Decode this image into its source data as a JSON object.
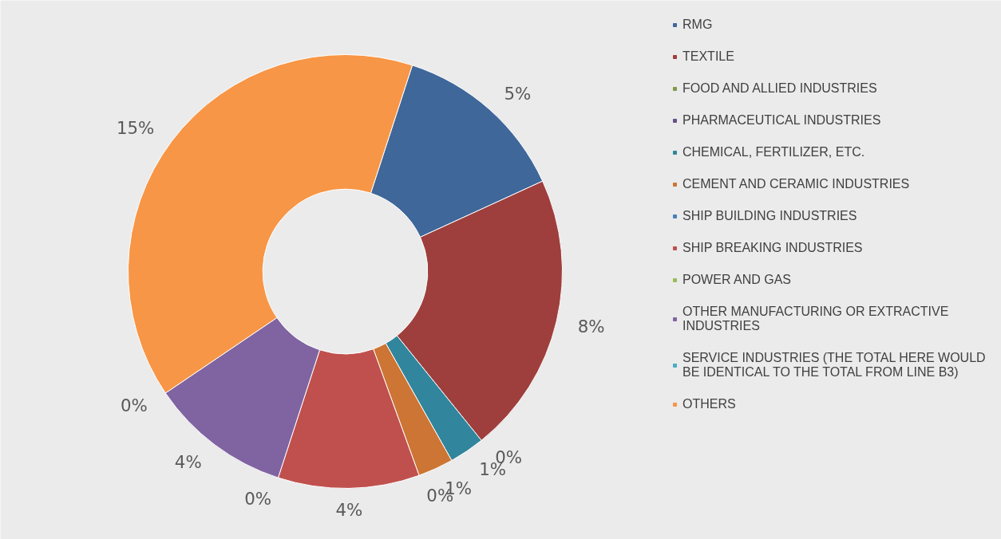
{
  "chart_data": {
    "type": "donut",
    "categories": [
      "RMG",
      "TEXTILE",
      "FOOD AND ALLIED INDUSTRIES",
      "PHARMACEUTICAL INDUSTRIES",
      "CHEMICAL, FERTILIZER, ETC.",
      "CEMENT AND CERAMIC INDUSTRIES",
      "SHIP BUILDING INDUSTRIES",
      "SHIP BREAKING INDUSTRIES",
      "POWER AND GAS",
      "OTHER MANUFACTURING OR EXTRACTIVE INDUSTRIES",
      "SERVICE INDUSTRIES (THE TOTAL HERE WOULD BE IDENTICAL TO THE TOTAL FROM LINE B3)",
      "OTHERS"
    ],
    "values": [
      5,
      8,
      0,
      0,
      1,
      1,
      0,
      4,
      0,
      4,
      0,
      15
    ],
    "value_labels": [
      "5%",
      "8%",
      "0%",
      null,
      "1%",
      "1%",
      "0%",
      "4%",
      "0%",
      "4%",
      "0%",
      "15%"
    ],
    "colors": [
      "#3f679a",
      "#9e3f3d",
      "#7f9a48",
      "#67508a",
      "#31859c",
      "#cd7534",
      "#4a7ebb",
      "#c0504d",
      "#9bbb59",
      "#8064a2",
      "#4bacc6",
      "#f79646"
    ],
    "legend": "right"
  }
}
